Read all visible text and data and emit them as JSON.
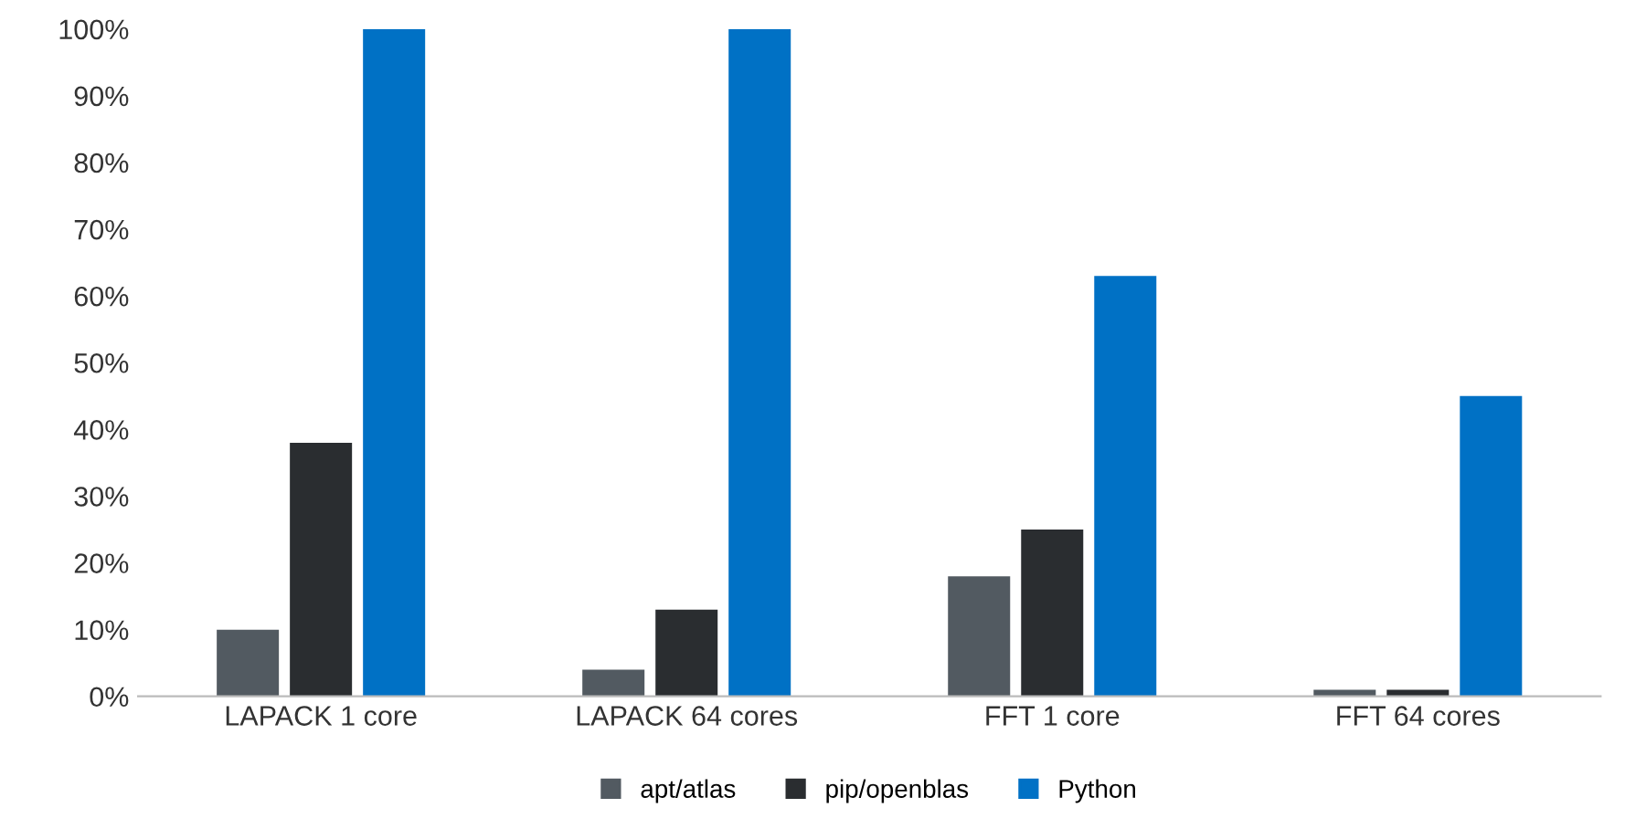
{
  "chart_data": {
    "type": "bar",
    "categories": [
      "LAPACK 1 core",
      "LAPACK 64 cores",
      "FFT 1 core",
      "FFT 64 cores"
    ],
    "series": [
      {
        "name": "apt/atlas",
        "color": "#525a61",
        "values": [
          10,
          4,
          18,
          1
        ]
      },
      {
        "name": "pip/openblas",
        "color": "#2a2d30",
        "values": [
          38,
          13,
          25,
          1
        ]
      },
      {
        "name": "Python",
        "color": "#0071c5",
        "values": [
          100,
          100,
          63,
          45
        ]
      }
    ],
    "ylim": [
      0,
      100
    ],
    "yticks": [
      {
        "value": 0,
        "label": "0%"
      },
      {
        "value": 10,
        "label": "10%"
      },
      {
        "value": 20,
        "label": "20%"
      },
      {
        "value": 30,
        "label": "30%"
      },
      {
        "value": 40,
        "label": "40%"
      },
      {
        "value": 50,
        "label": "50%"
      },
      {
        "value": 60,
        "label": "60%"
      },
      {
        "value": 70,
        "label": "70%"
      },
      {
        "value": 80,
        "label": "80%"
      },
      {
        "value": 90,
        "label": "90%"
      },
      {
        "value": 100,
        "label": "100%"
      }
    ],
    "grid": false,
    "legend": "bottom"
  }
}
